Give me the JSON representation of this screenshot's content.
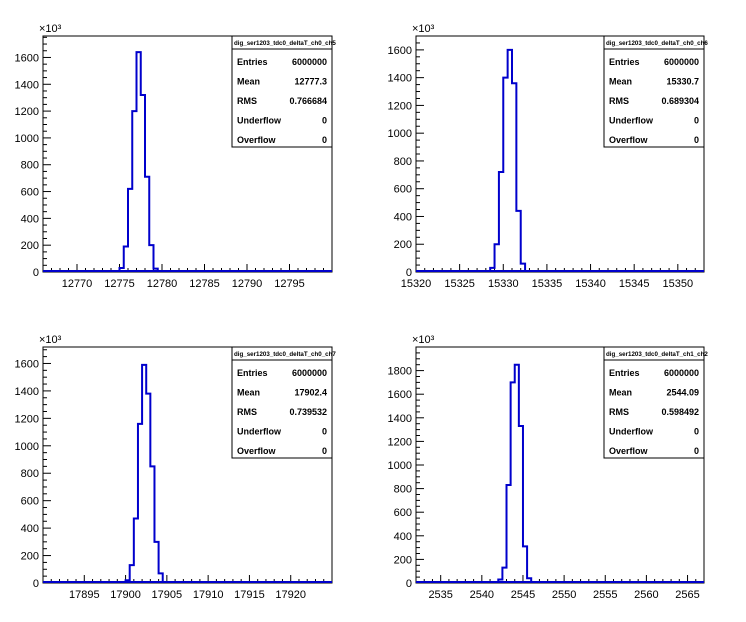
{
  "chart_data": [
    {
      "type": "bar",
      "stat_title": "dig_ser1203_tdc0_deltaT_ch0_ch5",
      "stats": [
        [
          "Entries",
          "6000000"
        ],
        [
          "Mean",
          "12777.3"
        ],
        [
          "RMS",
          "0.766684"
        ],
        [
          "Underflow",
          "0"
        ],
        [
          "Overflow",
          "0"
        ]
      ],
      "exponent_label": "×10³",
      "xlim": [
        12766,
        12800
      ],
      "ylim": [
        0,
        1760
      ],
      "yticks": [
        0,
        200,
        400,
        600,
        800,
        1000,
        1200,
        1400,
        1600
      ],
      "ytick_labels": [
        "0",
        "200",
        "400",
        "600",
        "800",
        "1000",
        "1200",
        "1400",
        "1600"
      ],
      "xticks": [
        12770,
        12775,
        12780,
        12785,
        12790,
        12795
      ],
      "xtick_labels": [
        "12770",
        "12775",
        "12780",
        "12785",
        "12790",
        "12795"
      ],
      "bin_width": 0.5,
      "bins": [
        {
          "x": 12775.0,
          "y": 30
        },
        {
          "x": 12775.5,
          "y": 190
        },
        {
          "x": 12776.0,
          "y": 620
        },
        {
          "x": 12776.5,
          "y": 1200
        },
        {
          "x": 12777.0,
          "y": 1640
        },
        {
          "x": 12777.5,
          "y": 1320
        },
        {
          "x": 12778.0,
          "y": 710
        },
        {
          "x": 12778.5,
          "y": 200
        },
        {
          "x": 12779.0,
          "y": 25
        }
      ]
    },
    {
      "type": "bar",
      "stat_title": "dig_ser1203_tdc0_deltaT_ch0_ch6",
      "stats": [
        [
          "Entries",
          "6000000"
        ],
        [
          "Mean",
          "15330.7"
        ],
        [
          "RMS",
          "0.689304"
        ],
        [
          "Underflow",
          "0"
        ],
        [
          "Overflow",
          "0"
        ]
      ],
      "exponent_label": "×10³",
      "xlim": [
        15320,
        15353
      ],
      "ylim": [
        0,
        1700
      ],
      "yticks": [
        0,
        200,
        400,
        600,
        800,
        1000,
        1200,
        1400,
        1600
      ],
      "ytick_labels": [
        "0",
        "200",
        "400",
        "600",
        "800",
        "1000",
        "1200",
        "1400",
        "1600"
      ],
      "xticks": [
        15320,
        15325,
        15330,
        15335,
        15340,
        15345,
        15350
      ],
      "xtick_labels": [
        "15320",
        "15325",
        "15330",
        "15335",
        "15340",
        "15345",
        "15350"
      ],
      "bin_width": 0.5,
      "bins": [
        {
          "x": 15328.5,
          "y": 30
        },
        {
          "x": 15329.0,
          "y": 200
        },
        {
          "x": 15329.5,
          "y": 720
        },
        {
          "x": 15330.0,
          "y": 1400
        },
        {
          "x": 15330.5,
          "y": 1600
        },
        {
          "x": 15331.0,
          "y": 1360
        },
        {
          "x": 15331.5,
          "y": 440
        },
        {
          "x": 15332.0,
          "y": 60
        }
      ]
    },
    {
      "type": "bar",
      "stat_title": "dig_ser1203_tdc0_deltaT_ch0_ch7",
      "stats": [
        [
          "Entries",
          "6000000"
        ],
        [
          "Mean",
          "17902.4"
        ],
        [
          "RMS",
          "0.739532"
        ],
        [
          "Underflow",
          "0"
        ],
        [
          "Overflow",
          "0"
        ]
      ],
      "exponent_label": "×10³",
      "xlim": [
        17890,
        17925
      ],
      "ylim": [
        0,
        1720
      ],
      "yticks": [
        0,
        200,
        400,
        600,
        800,
        1000,
        1200,
        1400,
        1600
      ],
      "ytick_labels": [
        "0",
        "200",
        "400",
        "600",
        "800",
        "1000",
        "1200",
        "1400",
        "1600"
      ],
      "xticks": [
        17895,
        17900,
        17905,
        17910,
        17915,
        17920
      ],
      "xtick_labels": [
        "17895",
        "17900",
        "17905",
        "17910",
        "17915",
        "17920"
      ],
      "bin_width": 0.5,
      "bins": [
        {
          "x": 17900.0,
          "y": 20
        },
        {
          "x": 17900.5,
          "y": 130
        },
        {
          "x": 17901.0,
          "y": 470
        },
        {
          "x": 17901.5,
          "y": 1160
        },
        {
          "x": 17902.0,
          "y": 1590
        },
        {
          "x": 17902.5,
          "y": 1380
        },
        {
          "x": 17903.0,
          "y": 850
        },
        {
          "x": 17903.5,
          "y": 300
        },
        {
          "x": 17904.0,
          "y": 70
        }
      ]
    },
    {
      "type": "bar",
      "stat_title": "dig_ser1203_tdc0_deltaT_ch1_ch2",
      "stats": [
        [
          "Entries",
          "6000000"
        ],
        [
          "Mean",
          "2544.09"
        ],
        [
          "RMS",
          "0.598492"
        ],
        [
          "Underflow",
          "0"
        ],
        [
          "Overflow",
          "0"
        ]
      ],
      "exponent_label": "×10³",
      "xlim": [
        2532,
        2567
      ],
      "ylim": [
        0,
        2000
      ],
      "yticks": [
        0,
        200,
        400,
        600,
        800,
        1000,
        1200,
        1400,
        1600,
        1800
      ],
      "ytick_labels": [
        "0",
        "200",
        "400",
        "600",
        "800",
        "1000",
        "1200",
        "1400",
        "1600",
        "1800"
      ],
      "xticks": [
        2535,
        2540,
        2545,
        2550,
        2555,
        2560,
        2565
      ],
      "xtick_labels": [
        "2535",
        "2540",
        "2545",
        "2550",
        "2555",
        "2560",
        "2565"
      ],
      "bin_width": 0.5,
      "bins": [
        {
          "x": 2542.0,
          "y": 30
        },
        {
          "x": 2542.5,
          "y": 130
        },
        {
          "x": 2543.0,
          "y": 830
        },
        {
          "x": 2543.5,
          "y": 1700
        },
        {
          "x": 2544.0,
          "y": 1850
        },
        {
          "x": 2544.5,
          "y": 1330
        },
        {
          "x": 2545.0,
          "y": 310
        },
        {
          "x": 2545.5,
          "y": 40
        }
      ]
    }
  ],
  "colors": {
    "line": "#0000cc",
    "frame": "#000000",
    "background": "#ffffff"
  }
}
